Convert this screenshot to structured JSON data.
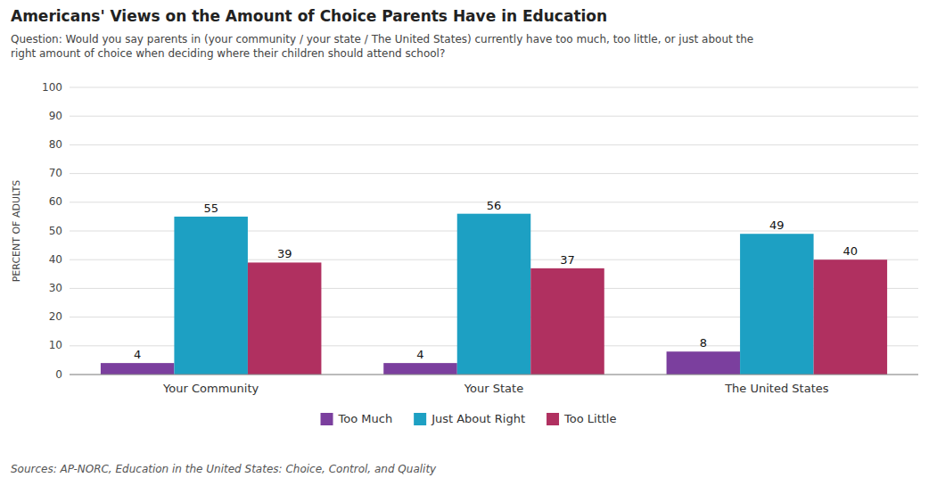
{
  "chart_data": {
    "type": "bar",
    "title": "Americans' Views on the Amount of Choice Parents Have in Education",
    "subtitle": "Question: Would you say parents in (your community / your state / The United States) currently have too much, too little, or just about the\nright amount of choice when deciding where their children should attend school?",
    "source": "Sources: AP-NORC, Education in the United States: Choice, Control, and Quality",
    "y_label": "PERCENT OF ADULTS",
    "categories": [
      "Your Community",
      "Your State",
      "The United States"
    ],
    "series": [
      {
        "name": "Too Much",
        "color": "#7b3f9e",
        "values": [
          4,
          4,
          8
        ]
      },
      {
        "name": "Just About Right",
        "color": "#1da0c3",
        "values": [
          55,
          56,
          49
        ]
      },
      {
        "name": "Too Little",
        "color": "#b03060",
        "values": [
          39,
          37,
          40
        ]
      }
    ],
    "ylim": [
      0,
      100
    ],
    "yticks": [
      0,
      10,
      20,
      30,
      40,
      50,
      60,
      70,
      80,
      90,
      100
    ],
    "grid": true,
    "legend": "bottom",
    "data_labels": true
  }
}
